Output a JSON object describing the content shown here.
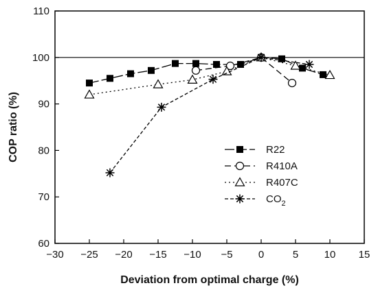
{
  "chart_data": {
    "type": "line",
    "xlabel": "Deviation from optimal charge (%)",
    "ylabel": "COP ratio (%)",
    "xlim": [
      -30,
      15
    ],
    "ylim": [
      60,
      110
    ],
    "xticks": [
      -30,
      -25,
      -20,
      -15,
      -10,
      -5,
      0,
      5,
      10,
      15
    ],
    "yticks": [
      60,
      70,
      80,
      90,
      100,
      110
    ],
    "reference_line_y": 100,
    "grid": false,
    "legend_position": "center-right",
    "series": [
      {
        "name": "R22",
        "marker": "filled-square",
        "dash": "long-dash",
        "points": [
          [
            -25,
            94.5
          ],
          [
            -22,
            95.5
          ],
          [
            -19,
            96.5
          ],
          [
            -16,
            97.2
          ],
          [
            -12.5,
            98.7
          ],
          [
            -9.5,
            98.7
          ],
          [
            -6.5,
            98.5
          ],
          [
            -3,
            98.5
          ],
          [
            0,
            100
          ],
          [
            3,
            99.7
          ],
          [
            6,
            97.7
          ],
          [
            9,
            96.3
          ]
        ]
      },
      {
        "name": "R410A",
        "marker": "open-circle",
        "dash": "dash",
        "points": [
          [
            -9.5,
            97.2
          ],
          [
            -4.5,
            98.2
          ],
          [
            0,
            100
          ],
          [
            4.5,
            94.5
          ]
        ]
      },
      {
        "name": "R407C",
        "marker": "open-triangle",
        "dash": "dotted",
        "points": [
          [
            -25,
            92
          ],
          [
            -15,
            94.2
          ],
          [
            -10,
            95.2
          ],
          [
            -5,
            97
          ],
          [
            0,
            100
          ],
          [
            5,
            98.2
          ],
          [
            10,
            96.2
          ]
        ]
      },
      {
        "name": "CO",
        "name_subscript": "2",
        "marker": "asterisk",
        "dash": "short-dash",
        "points": [
          [
            -22,
            75.2
          ],
          [
            -14.5,
            89.3
          ],
          [
            -7,
            95.3
          ],
          [
            0,
            100
          ],
          [
            7,
            98.5
          ]
        ]
      }
    ]
  }
}
